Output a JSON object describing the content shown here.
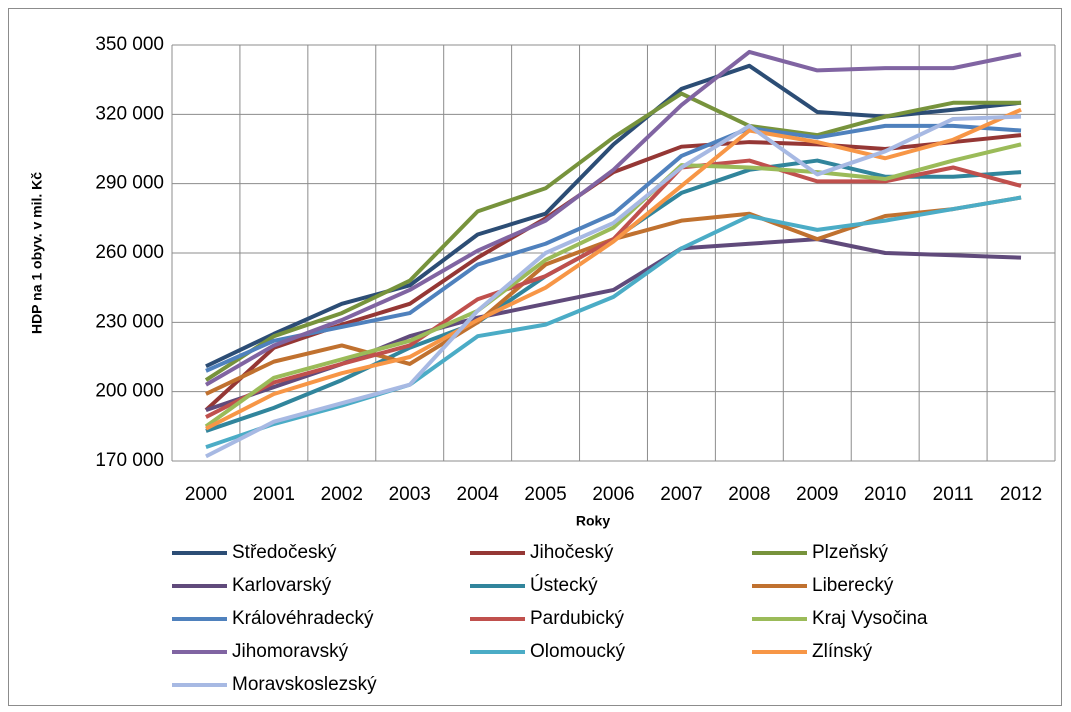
{
  "chart_data": {
    "type": "line",
    "x_label": "Roky",
    "y_label": "HDP na 1 obyv. v mil. Kč",
    "categories": [
      "2000",
      "2001",
      "2002",
      "2003",
      "2004",
      "2005",
      "2006",
      "2007",
      "2008",
      "2009",
      "2010",
      "2011",
      "2012"
    ],
    "ylim": [
      170000,
      350000
    ],
    "yticks": [
      {
        "value": 170000,
        "label": "170 000"
      },
      {
        "value": 200000,
        "label": "200 000"
      },
      {
        "value": 230000,
        "label": "230 000"
      },
      {
        "value": 260000,
        "label": "260 000"
      },
      {
        "value": 290000,
        "label": "290 000"
      },
      {
        "value": 320000,
        "label": "320 000"
      },
      {
        "value": 350000,
        "label": "350 000"
      }
    ],
    "grid": true,
    "legend": "bottom",
    "series": [
      {
        "name": "Středočeský",
        "color": "#2C4D75",
        "values": [
          211000,
          225000,
          238000,
          246000,
          268000,
          277000,
          307000,
          331000,
          341000,
          321000,
          319000,
          322000,
          325000
        ]
      },
      {
        "name": "Jihočeský",
        "color": "#953735",
        "values": [
          192000,
          219000,
          229000,
          238000,
          258000,
          275000,
          295000,
          306000,
          308000,
          307000,
          305000,
          308000,
          311000
        ]
      },
      {
        "name": "Plzeňský",
        "color": "#77933C",
        "values": [
          205000,
          224000,
          234000,
          248000,
          278000,
          288000,
          310000,
          329000,
          315000,
          311000,
          319000,
          325000,
          325000
        ]
      },
      {
        "name": "Karlovarský",
        "color": "#604A7B",
        "values": [
          192000,
          202000,
          212000,
          224000,
          232000,
          238000,
          244000,
          262000,
          264000,
          266000,
          260000,
          259000,
          258000
        ]
      },
      {
        "name": "Ústecký",
        "color": "#31859C",
        "values": [
          183000,
          193000,
          205000,
          219000,
          230000,
          250000,
          266000,
          286000,
          296000,
          300000,
          293000,
          293000,
          295000
        ]
      },
      {
        "name": "Liberecký",
        "color": "#C0712F",
        "values": [
          199000,
          213000,
          220000,
          212000,
          230000,
          255000,
          266000,
          274000,
          277000,
          266000,
          276000,
          279000,
          284000
        ]
      },
      {
        "name": "Královéhradecký",
        "color": "#4F81BD",
        "values": [
          209000,
          222000,
          228000,
          234000,
          255000,
          264000,
          277000,
          302000,
          314000,
          310000,
          315000,
          315000,
          313000
        ]
      },
      {
        "name": "Pardubický",
        "color": "#C0504D",
        "values": [
          189000,
          204000,
          212000,
          220000,
          240000,
          250000,
          266000,
          297000,
          300000,
          291000,
          291000,
          297000,
          289000
        ]
      },
      {
        "name": "Kraj Vysočina",
        "color": "#9BBB59",
        "values": [
          185000,
          206000,
          214000,
          222000,
          235000,
          257000,
          271000,
          298000,
          297000,
          295000,
          292000,
          300000,
          307000
        ]
      },
      {
        "name": "Jihomoravský",
        "color": "#8064A2",
        "values": [
          203000,
          220000,
          231000,
          244000,
          261000,
          274000,
          296000,
          324000,
          347000,
          339000,
          340000,
          340000,
          346000
        ]
      },
      {
        "name": "Olomoucký",
        "color": "#4BACC6",
        "values": [
          176000,
          186000,
          194000,
          203000,
          224000,
          229000,
          241000,
          262000,
          276000,
          270000,
          274000,
          279000,
          284000
        ]
      },
      {
        "name": "Zlínský",
        "color": "#F79646",
        "values": [
          184000,
          199000,
          208000,
          215000,
          231000,
          245000,
          265000,
          289000,
          313000,
          308000,
          301000,
          309000,
          322000
        ]
      },
      {
        "name": "Moravskoslezský",
        "color": "#A7B9E3",
        "values": [
          172000,
          187000,
          195000,
          203000,
          235000,
          260000,
          273000,
          297000,
          315000,
          294000,
          304000,
          318000,
          319000
        ]
      }
    ]
  }
}
